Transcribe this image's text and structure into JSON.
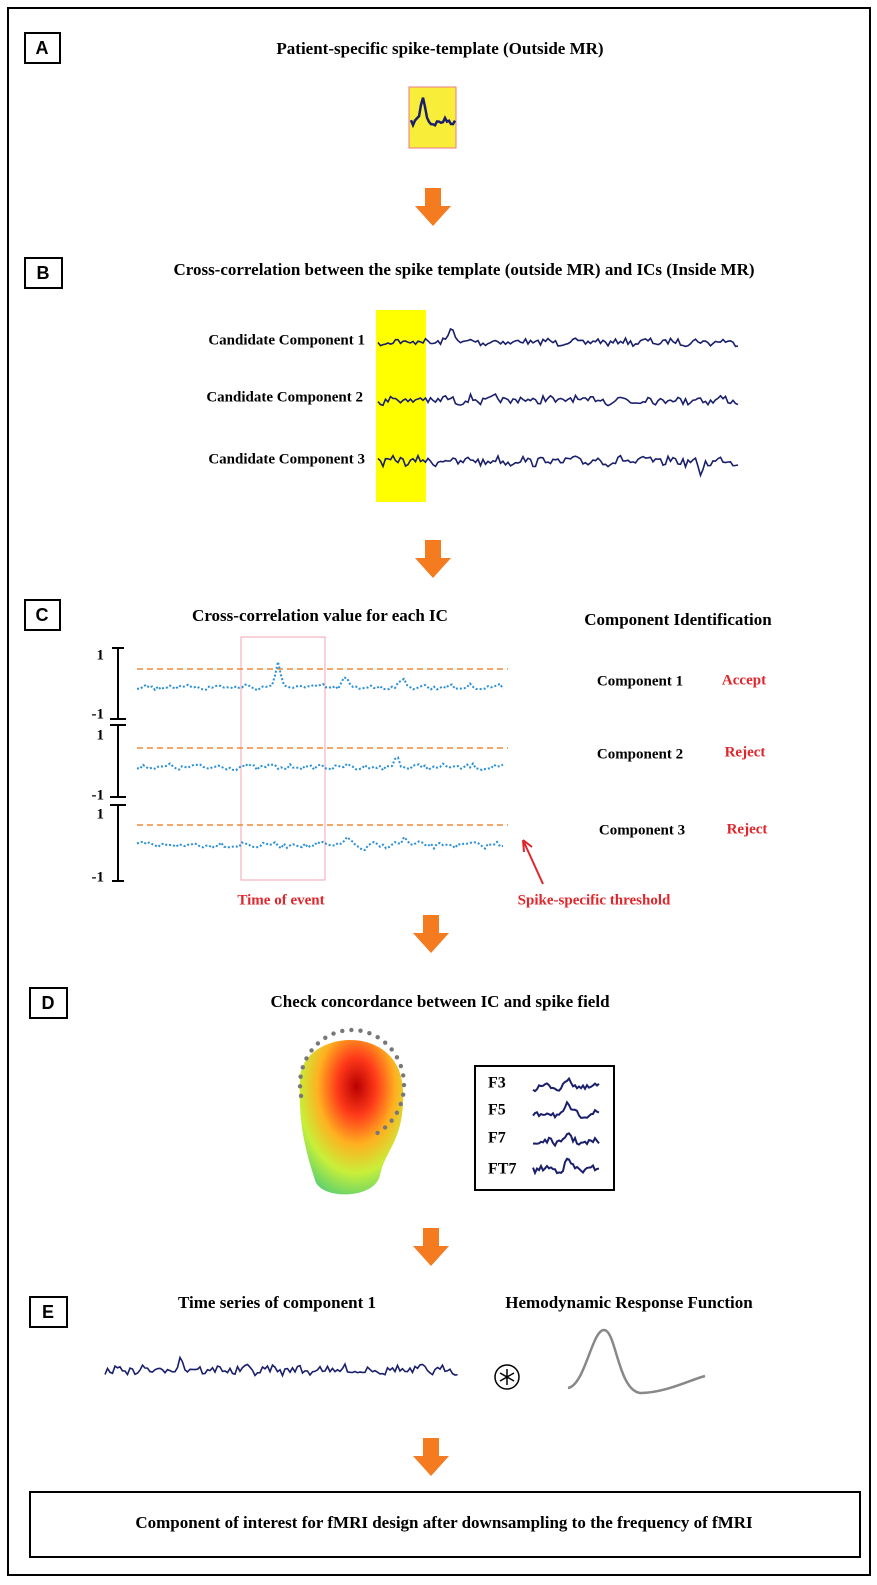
{
  "panels": {
    "a": {
      "label": "A",
      "title": "Patient-specific spike-template (Outside MR)"
    },
    "b": {
      "label": "B",
      "title": "Cross-correlation between the spike template (outside MR) and ICs (Inside MR)",
      "components": [
        "Candidate Component 1",
        "Candidate Component 2",
        "Candidate Component 3"
      ]
    },
    "c": {
      "label": "C",
      "title": "Cross-correlation value for each IC",
      "identification_title": "Component Identification",
      "axes": [
        {
          "top": "1",
          "bottom": "-1"
        },
        {
          "top": "1",
          "bottom": "-1"
        },
        {
          "top": "1",
          "bottom": "-1"
        }
      ],
      "rows": [
        {
          "component": "Component 1",
          "decision": "Accept"
        },
        {
          "component": "Component 2",
          "decision": "Reject"
        },
        {
          "component": "Component 3",
          "decision": "Reject"
        }
      ],
      "event_label": "Time of event",
      "threshold_label": "Spike-specific threshold"
    },
    "d": {
      "label": "D",
      "title": "Check concordance between IC and spike field",
      "channels": [
        "F3",
        "F5",
        "F7",
        "FT7"
      ]
    },
    "e": {
      "label": "E",
      "left_title": "Time series of component 1",
      "right_title": "Hemodynamic Response Function"
    }
  },
  "footer": {
    "text": "Component of interest for fMRI design after downsampling to the frequency of fMRI"
  }
}
